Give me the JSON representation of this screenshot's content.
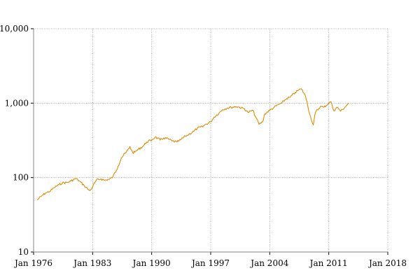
{
  "chart_data": {
    "type": "line",
    "title": "",
    "xlabel": "",
    "ylabel": "",
    "y_scale": "log",
    "ylim": [
      10,
      10000
    ],
    "xlim": [
      "1976-01",
      "2018-01"
    ],
    "grid": true,
    "legend": "none",
    "line_color": "#e08a00",
    "x_ticks": [
      "Jan 1976",
      "Jan 1983",
      "Jan 1990",
      "Jan 1997",
      "Jan 2004",
      "Jan 2011",
      "Jan 2018"
    ],
    "y_ticks": [
      {
        "value": 10,
        "label": "10"
      },
      {
        "value": 100,
        "label": "100"
      },
      {
        "value": 1000,
        "label": "1,000"
      },
      {
        "value": 10000,
        "label": "10,000"
      }
    ],
    "series": [
      {
        "x": [
          "1976-06",
          "1977-01",
          "1977-06",
          "1978-01",
          "1978-06",
          "1979-01",
          "1979-06",
          "1980-01",
          "1980-06",
          "1981-01",
          "1981-06",
          "1982-01",
          "1982-06",
          "1982-09",
          "1983-01",
          "1983-06",
          "1984-01",
          "1984-06",
          "1985-01",
          "1985-06",
          "1986-01",
          "1986-06",
          "1987-01",
          "1987-06",
          "1987-10",
          "1988-01",
          "1988-06",
          "1989-01",
          "1989-06",
          "1990-01",
          "1990-06",
          "1991-01",
          "1991-06",
          "1992-01",
          "1992-06",
          "1993-01",
          "1993-06",
          "1994-01",
          "1994-06",
          "1995-01",
          "1995-06",
          "1996-01",
          "1996-06",
          "1997-01",
          "1997-06",
          "1998-01",
          "1998-06",
          "1999-01",
          "1999-06",
          "2000-01",
          "2000-06",
          "2001-01",
          "2001-06",
          "2002-01",
          "2002-06",
          "2002-10",
          "2003-03",
          "2003-06",
          "2004-01",
          "2004-06",
          "2005-01",
          "2005-06",
          "2006-01",
          "2006-06",
          "2007-01",
          "2007-06",
          "2007-10",
          "2008-03",
          "2008-06",
          "2008-10",
          "2009-03",
          "2009-06",
          "2010-01",
          "2010-06",
          "2011-01",
          "2011-04",
          "2011-08",
          "2012-01",
          "2012-06",
          "2013-01",
          "2013-05"
        ],
        "values": [
          50,
          57,
          62,
          66,
          73,
          80,
          85,
          86,
          90,
          97,
          90,
          78,
          70,
          67,
          75,
          92,
          96,
          92,
          95,
          103,
          140,
          185,
          220,
          260,
          215,
          220,
          240,
          265,
          300,
          320,
          350,
          320,
          340,
          330,
          310,
          300,
          320,
          360,
          380,
          420,
          460,
          480,
          520,
          560,
          650,
          740,
          820,
          860,
          880,
          900,
          880,
          840,
          750,
          800,
          620,
          520,
          560,
          720,
          800,
          860,
          950,
          1000,
          1150,
          1200,
          1380,
          1500,
          1550,
          1300,
          1050,
          700,
          510,
          750,
          900,
          880,
          1000,
          1050,
          790,
          880,
          780,
          900,
          1000
        ]
      }
    ]
  }
}
